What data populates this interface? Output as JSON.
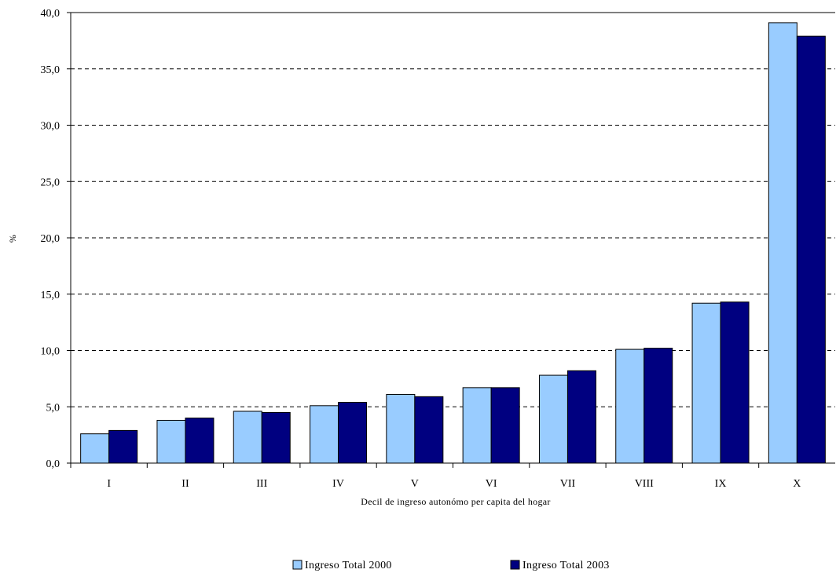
{
  "chart_data": {
    "type": "bar",
    "title": "",
    "xlabel": "Decil de ingreso autonómo per capita del hogar",
    "ylabel": "%",
    "ylim": [
      0,
      40
    ],
    "yticks": [
      "0,0",
      "5,0",
      "10,0",
      "15,0",
      "20,0",
      "25,0",
      "30,0",
      "35,0",
      "40,0"
    ],
    "grid": "horizontal dashed",
    "legend_position": "bottom",
    "categories": [
      "I",
      "II",
      "III",
      "IV",
      "V",
      "VI",
      "VII",
      "VIII",
      "IX",
      "X"
    ],
    "series": [
      {
        "name": "Ingreso Total 2000",
        "color": "#99ccff",
        "values": [
          2.6,
          3.8,
          4.6,
          5.1,
          6.1,
          6.7,
          7.8,
          10.1,
          14.2,
          39.1
        ]
      },
      {
        "name": "Ingreso Total 2003",
        "color": "#000080",
        "values": [
          2.9,
          4.0,
          4.5,
          5.4,
          5.9,
          6.7,
          8.2,
          10.2,
          14.3,
          37.9
        ]
      }
    ]
  }
}
